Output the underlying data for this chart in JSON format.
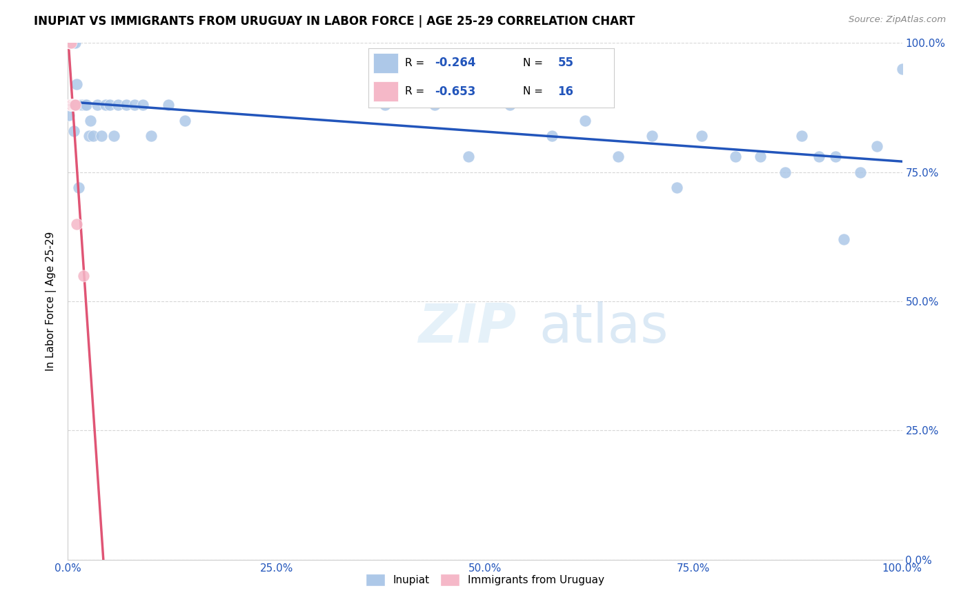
{
  "title": "INUPIAT VS IMMIGRANTS FROM URUGUAY IN LABOR FORCE | AGE 25-29 CORRELATION CHART",
  "source": "Source: ZipAtlas.com",
  "ylabel": "In Labor Force | Age 25-29",
  "xlim": [
    0.0,
    1.0
  ],
  "ylim": [
    0.0,
    1.0
  ],
  "ytick_vals": [
    0.0,
    0.25,
    0.5,
    0.75,
    1.0
  ],
  "xtick_vals": [
    0.0,
    0.25,
    0.5,
    0.75,
    1.0
  ],
  "watermark_part1": "ZIP",
  "watermark_part2": "atlas",
  "legend_r1": "-0.264",
  "legend_n1": "55",
  "legend_r2": "-0.653",
  "legend_n2": "16",
  "inupiat_color": "#adc8e8",
  "uruguay_color": "#f5b8c8",
  "inupiat_line_color": "#2255bb",
  "uruguay_line_color": "#e05575",
  "inupiat_x": [
    0.001,
    0.003,
    0.003,
    0.004,
    0.004,
    0.005,
    0.005,
    0.006,
    0.006,
    0.007,
    0.008,
    0.009,
    0.009,
    0.01,
    0.013,
    0.015,
    0.016,
    0.018,
    0.02,
    0.022,
    0.025,
    0.027,
    0.03,
    0.035,
    0.04,
    0.045,
    0.05,
    0.055,
    0.06,
    0.07,
    0.08,
    0.09,
    0.1,
    0.12,
    0.14,
    0.38,
    0.44,
    0.48,
    0.53,
    0.58,
    0.62,
    0.66,
    0.7,
    0.73,
    0.76,
    0.8,
    0.83,
    0.86,
    0.88,
    0.9,
    0.92,
    0.93,
    0.95,
    0.97,
    1.0
  ],
  "inupiat_y": [
    0.86,
    0.88,
    0.88,
    0.88,
    1.0,
    1.0,
    1.0,
    1.0,
    0.88,
    0.83,
    0.88,
    0.88,
    1.0,
    0.92,
    0.72,
    0.88,
    0.88,
    0.88,
    0.88,
    0.88,
    0.82,
    0.85,
    0.82,
    0.88,
    0.82,
    0.88,
    0.88,
    0.82,
    0.88,
    0.88,
    0.88,
    0.88,
    0.82,
    0.88,
    0.85,
    0.88,
    0.88,
    0.78,
    0.88,
    0.82,
    0.85,
    0.78,
    0.82,
    0.72,
    0.82,
    0.78,
    0.78,
    0.75,
    0.82,
    0.78,
    0.78,
    0.62,
    0.75,
    0.8,
    0.95
  ],
  "uruguay_x": [
    0.001,
    0.002,
    0.002,
    0.003,
    0.003,
    0.004,
    0.004,
    0.005,
    0.005,
    0.006,
    0.006,
    0.007,
    0.008,
    0.009,
    0.01,
    0.019
  ],
  "uruguay_y": [
    0.88,
    1.0,
    1.0,
    1.0,
    0.88,
    0.88,
    1.0,
    0.88,
    0.88,
    0.88,
    0.88,
    0.88,
    0.88,
    0.88,
    0.65,
    0.55
  ]
}
